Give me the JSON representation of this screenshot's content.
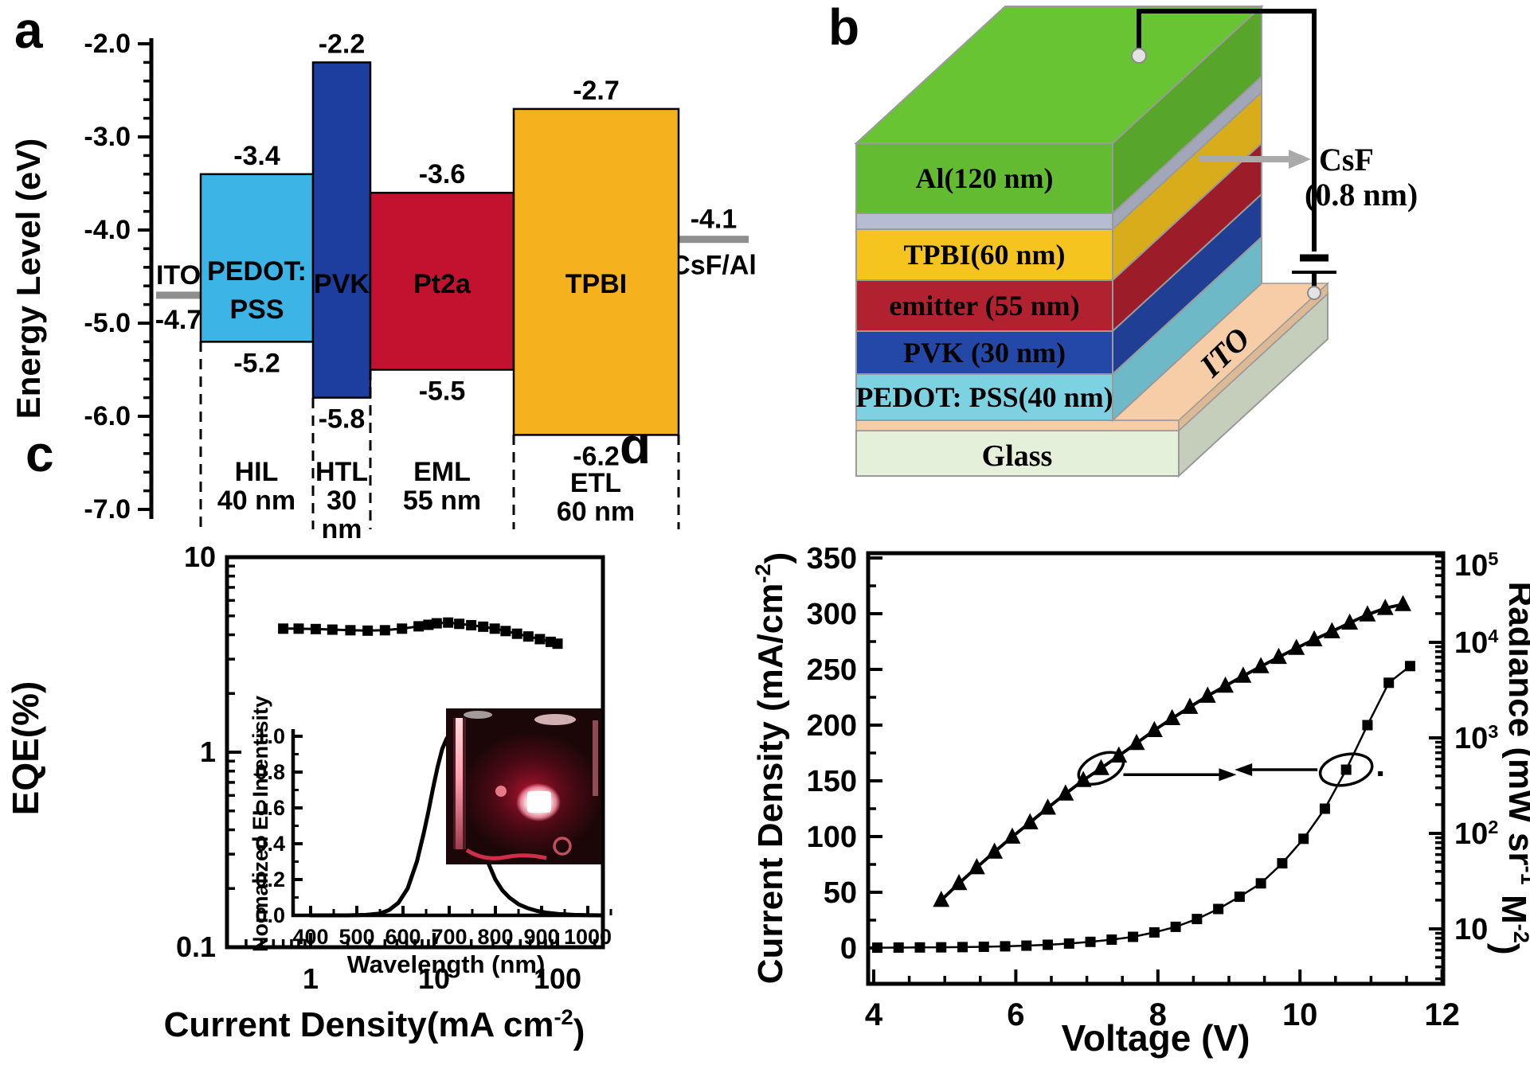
{
  "figure": {
    "background": "#ffffff",
    "panel_a": {
      "letter": "a",
      "y_axis_title": "Energy Level (eV)",
      "y_ticks": [
        "-2.0",
        "-3.0",
        "-4.0",
        "-5.0",
        "-6.0",
        "-7.0"
      ],
      "electrodes": [
        {
          "name": "ITO",
          "level": -4.7,
          "level_label": "-4.7",
          "color": "#8f8f8f"
        },
        {
          "name": "CsF/Al",
          "level": -4.1,
          "level_label": "-4.1",
          "color": "#8f8f8f"
        }
      ],
      "layers": [
        {
          "name": "PEDOT: PSS",
          "name_lines": [
            "PEDOT:",
            "PSS"
          ],
          "lumo": -3.4,
          "homo": -5.2,
          "lumo_label": "-3.4",
          "homo_label": "-5.2",
          "color": "#3cb4e6"
        },
        {
          "name": "PVK",
          "name_lines": [
            "PVK"
          ],
          "lumo": -2.2,
          "homo": -5.8,
          "lumo_label": "-2.2",
          "homo_label": "-5.8",
          "color": "#1e3e9f"
        },
        {
          "name": "Pt2a",
          "name_lines": [
            "Pt2a"
          ],
          "lumo": -3.6,
          "homo": -5.5,
          "lumo_label": "-3.6",
          "homo_label": "-5.5",
          "color": "#c31230"
        },
        {
          "name": "TPBI",
          "name_lines": [
            "TPBI"
          ],
          "lumo": -2.7,
          "homo": -6.2,
          "lumo_label": "-2.7",
          "homo_label": "-6.2",
          "color": "#f6b11f"
        }
      ],
      "regions": [
        {
          "lines": [
            "HIL",
            "40 nm"
          ]
        },
        {
          "lines": [
            "HTL",
            "30",
            "nm"
          ]
        },
        {
          "lines": [
            "EML",
            "55 nm"
          ]
        },
        {
          "lines": [
            "ETL",
            "60 nm"
          ]
        }
      ]
    },
    "panel_b": {
      "letter": "b",
      "layers": [
        {
          "name": "Al(120 nm)",
          "color": "#63bb31"
        },
        {
          "name": "",
          "color": "#b7bdd1"
        },
        {
          "name": "TPBI(60 nm)",
          "color": "#f5c41f"
        },
        {
          "name": "emitter (55 nm)",
          "color": "#b1212f"
        },
        {
          "name": "PVK (30 nm)",
          "color": "#2448a8"
        },
        {
          "name": "PEDOT: PSS(40 nm)",
          "color": "#7dd2e2"
        }
      ],
      "substrate": {
        "ito_label": "ITO",
        "ito_color": "#f7cda7",
        "glass_label": "Glass",
        "glass_color": "#e5f0da"
      },
      "csf_annotation": {
        "line1": "CsF",
        "line2": "(0.8 nm)"
      }
    },
    "panel_c": {
      "letter": "c",
      "y_title": "EQE(%)",
      "x_title_parts": [
        {
          "t": "Current Density(mA cm"
        },
        {
          "t": "-2",
          "sup": true
        },
        {
          "t": ")"
        }
      ],
      "x_tick_labels": [
        "1",
        "10",
        "100"
      ],
      "y_tick_labels": [
        "10",
        "1",
        "0.1"
      ],
      "inset": {
        "y_title": "Normalized EL Intentisity",
        "x_title": "Wavelength (nm)",
        "x_tick_labels": [
          "400",
          "500",
          "600",
          "700",
          "800",
          "900",
          "1000"
        ],
        "y_tick_labels": [
          "0.0",
          "0.2",
          "0.4",
          "0.6",
          "0.8",
          "1.0"
        ]
      },
      "photo_caption": "red electroluminescent device photo"
    },
    "panel_d": {
      "letter": "d",
      "x_title": "Voltage (V)",
      "x_tick_labels": [
        "4",
        "6",
        "8",
        "10",
        "12"
      ],
      "left_title_parts": [
        {
          "t": "Current Density (mA/cm"
        },
        {
          "t": "-2",
          "sup": true
        },
        {
          "t": ")"
        }
      ],
      "left_tick_labels": [
        "0",
        "50",
        "100",
        "150",
        "200",
        "250",
        "300",
        "350"
      ],
      "right_title_parts": [
        {
          "t": "Radiance (mW sr"
        },
        {
          "t": "-1",
          "sup": true
        },
        {
          "t": " M"
        },
        {
          "t": "-2",
          "sup": true
        },
        {
          "t": ")"
        }
      ],
      "right_ticks": [
        {
          "base": "10",
          "exp": ""
        },
        {
          "base": "10",
          "exp": "2"
        },
        {
          "base": "10",
          "exp": "3"
        },
        {
          "base": "10",
          "exp": "4"
        },
        {
          "base": "10",
          "exp": "5"
        }
      ]
    }
  },
  "chart_data": [
    {
      "id": "panel_c_eqe",
      "type": "line",
      "x_scale": "log",
      "y_scale": "log",
      "xlim": [
        0.21,
        260
      ],
      "ylim": [
        0.1,
        10
      ],
      "xlabel": "Current Density(mA cm-2)",
      "ylabel": "EQE(%)",
      "legend": "none",
      "series": [
        {
          "name": "EQE",
          "marker": "square",
          "points": [
            [
              0.6,
              4.3
            ],
            [
              0.8,
              4.3
            ],
            [
              1.1,
              4.28
            ],
            [
              1.5,
              4.25
            ],
            [
              2.1,
              4.22
            ],
            [
              2.9,
              4.2
            ],
            [
              4.0,
              4.22
            ],
            [
              5.5,
              4.3
            ],
            [
              7.5,
              4.42
            ],
            [
              9.0,
              4.5
            ],
            [
              10.5,
              4.58
            ],
            [
              13,
              4.62
            ],
            [
              16,
              4.55
            ],
            [
              20,
              4.48
            ],
            [
              25,
              4.4
            ],
            [
              31,
              4.3
            ],
            [
              38,
              4.18
            ],
            [
              47,
              4.05
            ],
            [
              58,
              3.92
            ],
            [
              72,
              3.8
            ],
            [
              88,
              3.68
            ],
            [
              100,
              3.6
            ]
          ]
        }
      ]
    },
    {
      "id": "panel_c_inset_el_spectrum",
      "type": "line",
      "x_scale": "linear",
      "y_scale": "linear",
      "xlim": [
        390,
        1040
      ],
      "ylim": [
        0,
        1.05
      ],
      "xlabel": "Wavelength (nm)",
      "ylabel": "Normalized EL Intentisity",
      "peak_nm": 700,
      "series": [
        {
          "name": "EL spectrum",
          "marker": "none",
          "points": [
            [
              400,
              0
            ],
            [
              480,
              0
            ],
            [
              520,
              0.003
            ],
            [
              550,
              0.01
            ],
            [
              570,
              0.03
            ],
            [
              590,
              0.07
            ],
            [
              610,
              0.15
            ],
            [
              630,
              0.3
            ],
            [
              645,
              0.46
            ],
            [
              655,
              0.58
            ],
            [
              665,
              0.71
            ],
            [
              675,
              0.83
            ],
            [
              685,
              0.93
            ],
            [
              695,
              0.99
            ],
            [
              700,
              1.0
            ],
            [
              705,
              0.99
            ],
            [
              715,
              0.95
            ],
            [
              725,
              0.87
            ],
            [
              735,
              0.77
            ],
            [
              745,
              0.66
            ],
            [
              755,
              0.55
            ],
            [
              765,
              0.45
            ],
            [
              775,
              0.36
            ],
            [
              785,
              0.29
            ],
            [
              800,
              0.2
            ],
            [
              815,
              0.14
            ],
            [
              830,
              0.1
            ],
            [
              850,
              0.062
            ],
            [
              870,
              0.04
            ],
            [
              890,
              0.025
            ],
            [
              910,
              0.015
            ],
            [
              940,
              0.007
            ],
            [
              970,
              0.003
            ],
            [
              1000,
              0.001
            ],
            [
              1030,
              0
            ]
          ]
        }
      ]
    },
    {
      "id": "panel_d_jv_radiance",
      "type": "line",
      "xlabel": "Voltage (V)",
      "xlim": [
        4,
        12
      ],
      "left_axis": {
        "label": "Current Density (mA/cm-2)",
        "scale": "linear",
        "lim": [
          0,
          350
        ]
      },
      "right_axis": {
        "label": "Radiance (mW sr-1 M-2)",
        "scale": "log",
        "lim": [
          2.7,
          100000
        ]
      },
      "series": [
        {
          "name": "Current density",
          "axis": "left",
          "marker": "square",
          "points": [
            [
              4.05,
              0.3
            ],
            [
              4.35,
              0.4
            ],
            [
              4.65,
              0.5
            ],
            [
              4.95,
              0.6
            ],
            [
              5.25,
              0.8
            ],
            [
              5.55,
              1.1
            ],
            [
              5.85,
              1.5
            ],
            [
              6.15,
              2.1
            ],
            [
              6.45,
              2.9
            ],
            [
              6.75,
              4.0
            ],
            [
              7.05,
              5.5
            ],
            [
              7.35,
              7.5
            ],
            [
              7.65,
              10
            ],
            [
              7.95,
              14
            ],
            [
              8.25,
              19
            ],
            [
              8.55,
              26
            ],
            [
              8.85,
              35
            ],
            [
              9.15,
              46
            ],
            [
              9.45,
              58
            ],
            [
              9.75,
              76
            ],
            [
              10.05,
              98
            ],
            [
              10.35,
              125
            ],
            [
              10.65,
              160
            ],
            [
              10.95,
              200
            ],
            [
              11.25,
              238
            ],
            [
              11.55,
              253
            ]
          ]
        },
        {
          "name": "Radiance",
          "axis": "right",
          "marker": "triangle",
          "points": [
            [
              4.95,
              20
            ],
            [
              5.2,
              30
            ],
            [
              5.45,
              44
            ],
            [
              5.7,
              64
            ],
            [
              5.95,
              92
            ],
            [
              6.2,
              130
            ],
            [
              6.45,
              185
            ],
            [
              6.7,
              260
            ],
            [
              6.95,
              360
            ],
            [
              7.2,
              480
            ],
            [
              7.45,
              650
            ],
            [
              7.7,
              880
            ],
            [
              7.95,
              1200
            ],
            [
              8.2,
              1600
            ],
            [
              8.45,
              2100
            ],
            [
              8.7,
              2750
            ],
            [
              8.95,
              3500
            ],
            [
              9.2,
              4450
            ],
            [
              9.45,
              5600
            ],
            [
              9.7,
              7000
            ],
            [
              9.95,
              8700
            ],
            [
              10.2,
              10700
            ],
            [
              10.45,
              13000
            ],
            [
              10.7,
              16000
            ],
            [
              10.95,
              19500
            ],
            [
              11.2,
              22800
            ],
            [
              11.45,
              25000
            ]
          ]
        }
      ],
      "annotations": [
        {
          "type": "ellipse-arrow",
          "on": "Radiance",
          "at_x": 7.2,
          "arrow": "right"
        },
        {
          "type": "ellipse-arrow",
          "on": "Current density",
          "at_x": 10.65,
          "arrow": "left"
        }
      ]
    }
  ]
}
